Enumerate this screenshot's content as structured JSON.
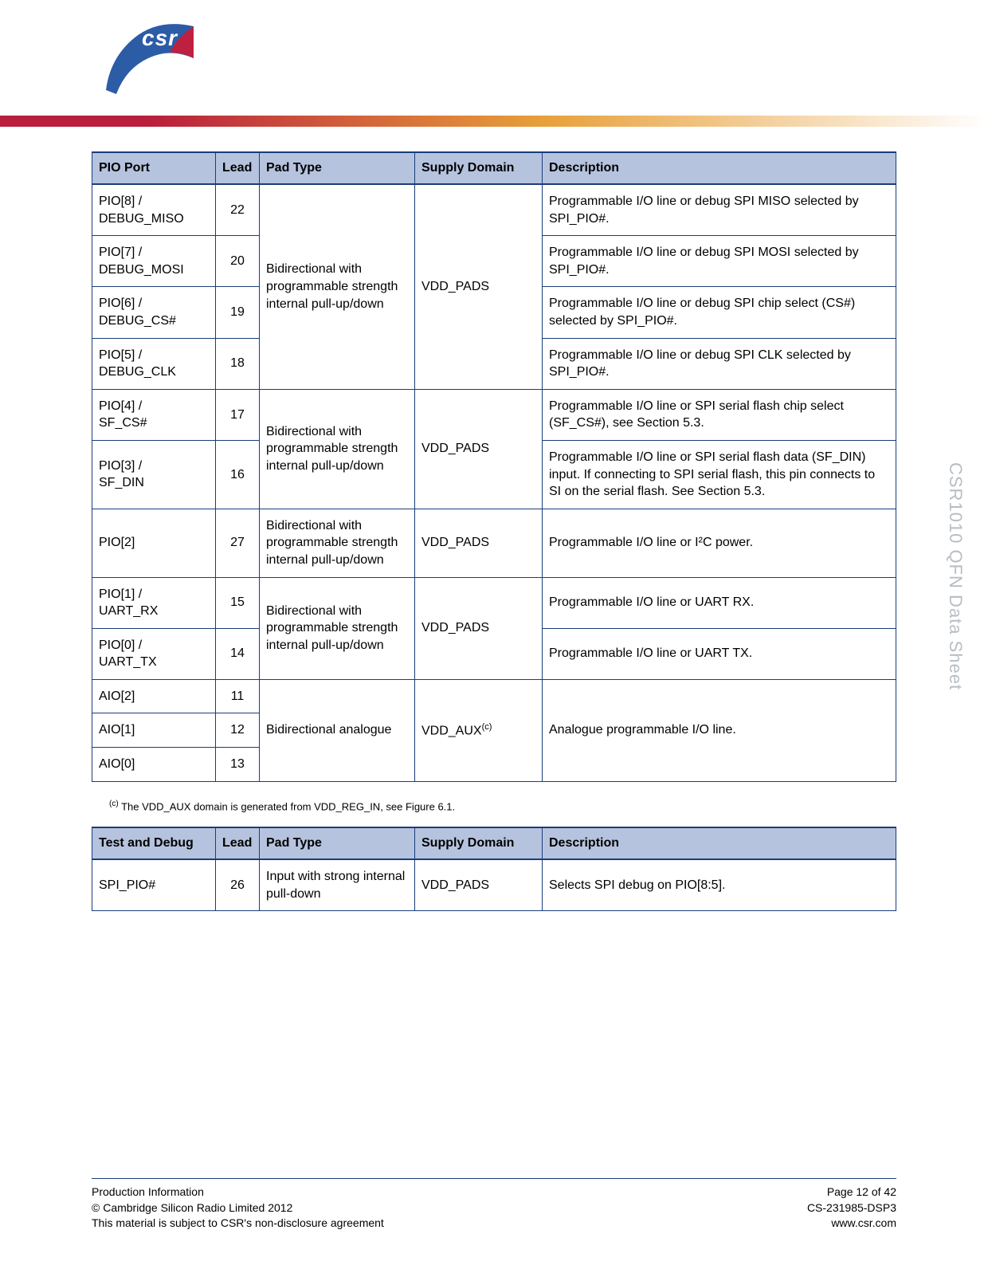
{
  "logo": {
    "text": "csr"
  },
  "side_label": "CSR1010 QFN   Data Sheet",
  "table1": {
    "headers": [
      "PIO Port",
      "Lead",
      "Pad Type",
      "Supply Domain",
      "Description"
    ],
    "groups": [
      {
        "pad_type": "Bidirectional with programmable strength internal pull-up/down",
        "supply": "VDD_PADS",
        "rows": [
          {
            "port": "PIO[8] / DEBUG_MISO",
            "lead": "22",
            "desc": "Programmable I/O line or debug SPI MISO selected by SPI_PIO#."
          },
          {
            "port": "PIO[7] / DEBUG_MOSI",
            "lead": "20",
            "desc": "Programmable I/O line or debug SPI MOSI selected by SPI_PIO#."
          },
          {
            "port": "PIO[6] / DEBUG_CS#",
            "lead": "19",
            "desc": "Programmable I/O line or debug SPI chip select (CS#) selected by SPI_PIO#."
          },
          {
            "port": "PIO[5] / DEBUG_CLK",
            "lead": "18",
            "desc": "Programmable I/O line or debug SPI CLK selected by SPI_PIO#."
          }
        ]
      },
      {
        "pad_type": "Bidirectional with programmable strength internal pull-up/down",
        "supply": "VDD_PADS",
        "rows": [
          {
            "port": "PIO[4] / SF_CS#",
            "lead": "17",
            "desc": "Programmable I/O line or SPI serial flash chip select (SF_CS#), see Section 5.3."
          },
          {
            "port": "PIO[3] / SF_DIN",
            "lead": "16",
            "desc": "Programmable I/O line or SPI serial flash data (SF_DIN) input. If connecting to SPI serial flash, this pin connects to SI on the serial flash. See Section 5.3."
          }
        ]
      },
      {
        "pad_type": "Bidirectional with programmable strength internal pull-up/down",
        "supply": "VDD_PADS",
        "rows": [
          {
            "port": "PIO[2]",
            "lead": "27",
            "desc": "Programmable I/O line or I²C power."
          }
        ]
      },
      {
        "pad_type": "Bidirectional with programmable strength internal pull-up/down",
        "supply": "VDD_PADS",
        "rows": [
          {
            "port": "PIO[1] / UART_RX",
            "lead": "15",
            "desc": "Programmable I/O line or UART RX."
          },
          {
            "port": "PIO[0] / UART_TX",
            "lead": "14",
            "desc": "Programmable I/O line or UART TX."
          }
        ]
      },
      {
        "pad_type": "Bidirectional analogue",
        "supply": "VDD_AUX(c)",
        "merged_desc": "Analogue programmable I/O line.",
        "rows": [
          {
            "port": "AIO[2]",
            "lead": "11"
          },
          {
            "port": "AIO[1]",
            "lead": "12"
          },
          {
            "port": "AIO[0]",
            "lead": "13"
          }
        ]
      }
    ]
  },
  "footnote": "(c) The VDD_AUX domain is generated from VDD_REG_IN, see Figure 6.1.",
  "table2": {
    "headers": [
      "Test and Debug",
      "Lead",
      "Pad Type",
      "Supply Domain",
      "Description"
    ],
    "rows": [
      {
        "port": "SPI_PIO#",
        "lead": "26",
        "pad_type": "Input with strong internal pull-down",
        "supply": "VDD_PADS",
        "desc": "Selects SPI debug on PIO[8:5]."
      }
    ]
  },
  "footer": {
    "left1": "Production Information",
    "left2": "© Cambridge Silicon Radio Limited 2012",
    "left3": "This material is subject to CSR's non-disclosure agreement",
    "right1": "Page 12 of 42",
    "right2": "CS-231985-DSP3",
    "right3": "www.csr.com"
  },
  "colors": {
    "header_bg": "#b6c3de",
    "border": "#1a3d7a",
    "grad_start": "#b91e3c",
    "grad_mid": "#e8a03a",
    "side_text": "#b8bdc4"
  }
}
